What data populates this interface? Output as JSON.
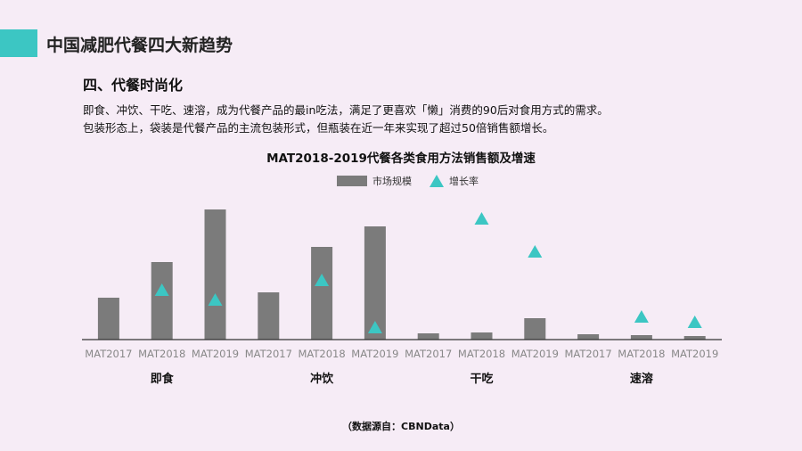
{
  "header": {
    "title": "中国减肥代餐四大新趋势",
    "accent_color": "#3cc6c3"
  },
  "section": {
    "title": "四、代餐时尚化",
    "paragraphs": [
      "即食、冲饮、干吃、速溶，成为代餐产品的最in吃法，满足了更喜欢「懒」消费的90后对食用方式的需求。",
      "包装形态上，袋装是代餐产品的主流包装形式，但瓶装在近一年来实现了超过50倍销售额增长。"
    ]
  },
  "chart_data": {
    "type": "bar",
    "title": "MAT2018-2019代餐各类食用方法销售额及增速",
    "legend_position": "top",
    "grid": false,
    "y_axis_shown": false,
    "groups": [
      "即食",
      "冲饮",
      "干吃",
      "速溶"
    ],
    "categories": [
      "MAT2017",
      "MAT2018",
      "MAT2019",
      "MAT2017",
      "MAT2018",
      "MAT2019",
      "MAT2017",
      "MAT2018",
      "MAT2019",
      "MAT2017",
      "MAT2018",
      "MAT2019"
    ],
    "series": [
      {
        "name": "市场规模",
        "kind": "bar",
        "color": "#7b7b7b",
        "values": [
          47,
          87,
          146,
          53,
          104,
          127,
          7,
          8,
          24,
          6,
          5,
          4
        ]
      },
      {
        "name": "增长率",
        "kind": "triangle-marker",
        "color": "#3cc6c3",
        "values": [
          null,
          55,
          44,
          null,
          66,
          13,
          null,
          135,
          98,
          null,
          25,
          19
        ]
      }
    ],
    "note": "relative values estimated; no axis scale printed"
  },
  "source": "（数据源自：CBNData）"
}
